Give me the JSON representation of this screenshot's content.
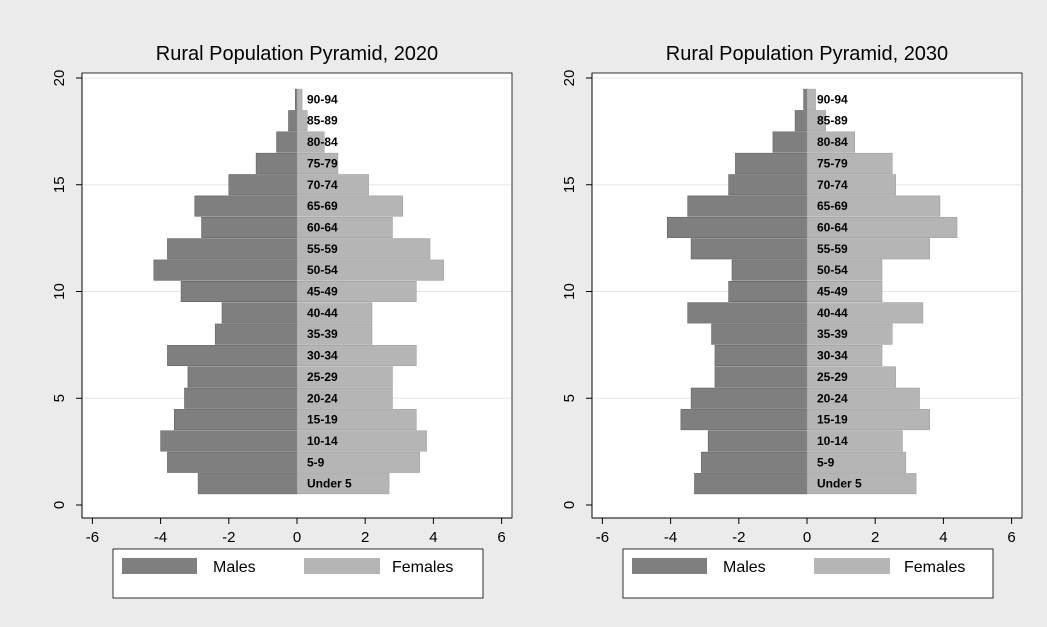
{
  "colors": {
    "males": "#7f7f7f",
    "females": "#b5b5b5",
    "background": "#ebebeb"
  },
  "chart_data": [
    {
      "type": "bar",
      "orientation": "horizontal",
      "title": "Rural Population Pyramid, 2020",
      "categories": [
        "Under 5",
        "5-9",
        "10-14",
        "15-19",
        "20-24",
        "25-29",
        "30-34",
        "35-39",
        "40-44",
        "45-49",
        "50-54",
        "55-59",
        "60-64",
        "65-69",
        "70-74",
        "75-79",
        "80-84",
        "85-89",
        "90-94"
      ],
      "series": [
        {
          "name": "Males",
          "values": [
            -2.9,
            -3.8,
            -4.0,
            -3.6,
            -3.3,
            -3.2,
            -3.8,
            -2.4,
            -2.2,
            -3.4,
            -4.2,
            -3.8,
            -2.8,
            -3.0,
            -2.0,
            -1.2,
            -0.6,
            -0.25,
            -0.05
          ]
        },
        {
          "name": "Females",
          "values": [
            2.7,
            3.6,
            3.8,
            3.5,
            2.8,
            2.8,
            3.5,
            2.2,
            2.2,
            3.5,
            4.3,
            3.9,
            2.8,
            3.1,
            2.1,
            1.2,
            0.8,
            0.3,
            0.15
          ]
        }
      ],
      "xticks": [
        -6,
        -4,
        -2,
        0,
        2,
        4,
        6
      ],
      "yticks": [
        0,
        5,
        10,
        15,
        20
      ],
      "xlim": [
        -6.2,
        6.2
      ],
      "ylim": [
        -0.3,
        20.5
      ],
      "legend": {
        "position": "bottom",
        "entries": [
          "Males",
          "Females"
        ]
      },
      "grid": true
    },
    {
      "type": "bar",
      "orientation": "horizontal",
      "title": "Rural Population Pyramid, 2030",
      "categories": [
        "Under 5",
        "5-9",
        "10-14",
        "15-19",
        "20-24",
        "25-29",
        "30-34",
        "35-39",
        "40-44",
        "45-49",
        "50-54",
        "55-59",
        "60-64",
        "65-69",
        "70-74",
        "75-79",
        "80-84",
        "85-89",
        "90-94"
      ],
      "series": [
        {
          "name": "Males",
          "values": [
            -3.3,
            -3.1,
            -2.9,
            -3.7,
            -3.4,
            -2.7,
            -2.7,
            -2.8,
            -3.5,
            -2.3,
            -2.2,
            -3.4,
            -4.1,
            -3.5,
            -2.3,
            -2.1,
            -1.0,
            -0.35,
            -0.1
          ]
        },
        {
          "name": "Females",
          "values": [
            3.2,
            2.9,
            2.8,
            3.6,
            3.3,
            2.6,
            2.2,
            2.5,
            3.4,
            2.2,
            2.2,
            3.6,
            4.4,
            3.9,
            2.6,
            2.5,
            1.4,
            0.55,
            0.25
          ]
        }
      ],
      "xticks": [
        -6,
        -4,
        -2,
        0,
        2,
        4,
        6
      ],
      "yticks": [
        0,
        5,
        10,
        15,
        20
      ],
      "xlim": [
        -6.2,
        6.2
      ],
      "ylim": [
        -0.3,
        20.5
      ],
      "legend": {
        "position": "bottom",
        "entries": [
          "Males",
          "Females"
        ]
      },
      "grid": true
    }
  ]
}
